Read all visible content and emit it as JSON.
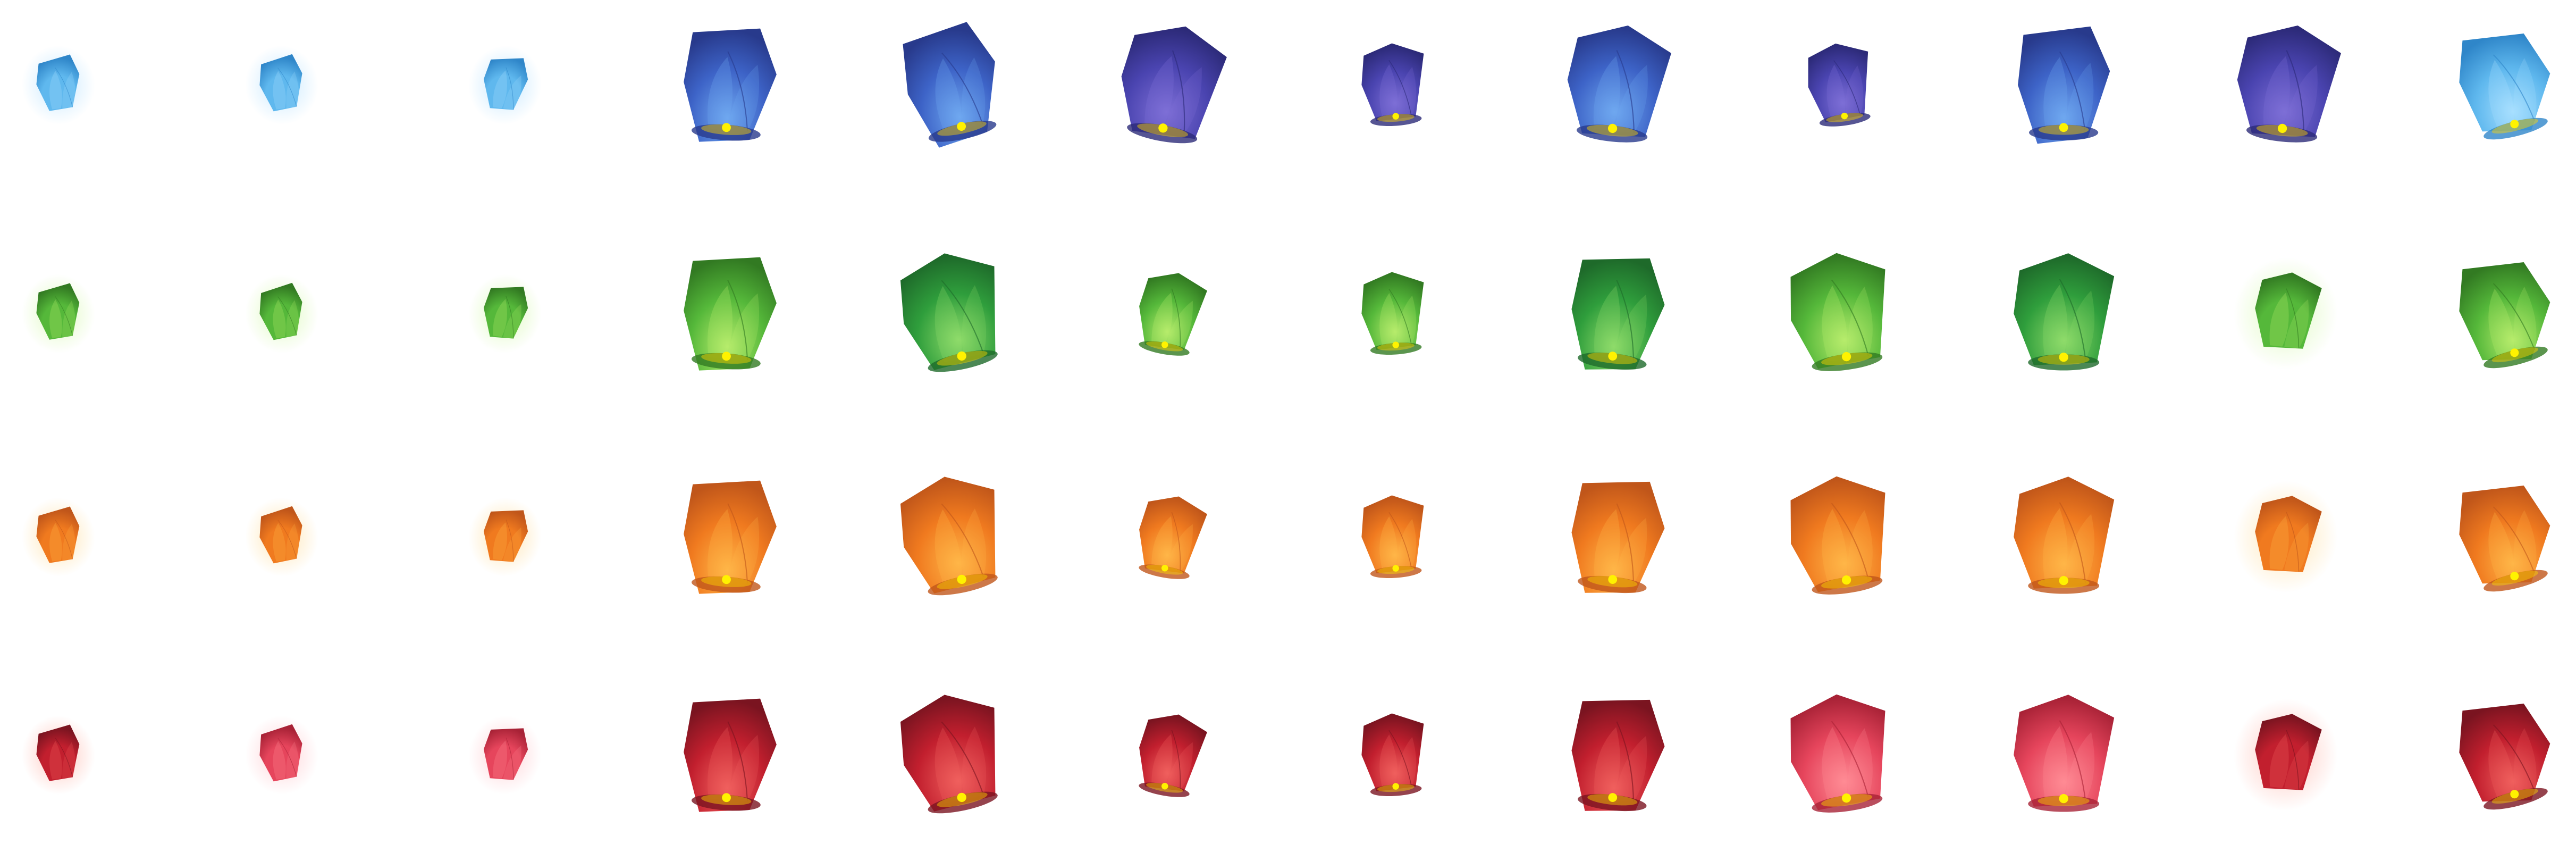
{
  "palette": {
    "blue": {
      "base": "#3d63c7",
      "light": "#6fa8f0",
      "dark": "#283a8c",
      "glow": "#8ec9ff"
    },
    "indigo": {
      "base": "#4a44b0",
      "light": "#7e6fd6",
      "dark": "#2c2a78",
      "glow": "#9a8cff"
    },
    "sky": {
      "base": "#5fb8ee",
      "light": "#a8e0ff",
      "dark": "#2f86c9",
      "glow": "#9fd8ff"
    },
    "green": {
      "base": "#2f9e3c",
      "light": "#8fdc6a",
      "dark": "#1e6a2a",
      "glow": "#b8f08a"
    },
    "lime": {
      "base": "#55b83a",
      "light": "#b7ec6c",
      "dark": "#327a22",
      "glow": "#c6f58f"
    },
    "orange": {
      "base": "#f07a1f",
      "light": "#ffb648",
      "dark": "#c0561a",
      "glow": "#ffd27a"
    },
    "red": {
      "base": "#c21f2e",
      "light": "#f0605e",
      "dark": "#7a1420",
      "glow": "#ff9a8a"
    },
    "pink": {
      "base": "#e6455c",
      "light": "#ff8b95",
      "dark": "#a82236",
      "glow": "#ffb1b8"
    },
    "flame": "#fff200",
    "flame_halo": "#ffd400"
  },
  "rows": [
    {
      "name": "blue",
      "lanterns": [
        {
          "color": "sky",
          "lit": false,
          "shape": "small"
        },
        {
          "color": "sky",
          "lit": false,
          "shape": "small"
        },
        {
          "color": "sky",
          "lit": false,
          "shape": "small"
        },
        {
          "color": "blue",
          "lit": true,
          "shape": "tall"
        },
        {
          "color": "blue",
          "lit": true,
          "shape": "tall"
        },
        {
          "color": "indigo",
          "lit": true,
          "shape": "wide"
        },
        {
          "color": "indigo",
          "lit": true,
          "shape": "compact"
        },
        {
          "color": "blue",
          "lit": true,
          "shape": "wide"
        },
        {
          "color": "indigo",
          "lit": true,
          "shape": "compact"
        },
        {
          "color": "blue",
          "lit": true,
          "shape": "tall"
        },
        {
          "color": "indigo",
          "lit": true,
          "shape": "wide"
        },
        {
          "color": "sky",
          "lit": true,
          "shape": "tilted"
        }
      ]
    },
    {
      "name": "green",
      "lanterns": [
        {
          "color": "lime",
          "lit": false,
          "shape": "small"
        },
        {
          "color": "lime",
          "lit": false,
          "shape": "small"
        },
        {
          "color": "lime",
          "lit": false,
          "shape": "small"
        },
        {
          "color": "lime",
          "lit": true,
          "shape": "tall"
        },
        {
          "color": "green",
          "lit": true,
          "shape": "wide"
        },
        {
          "color": "lime",
          "lit": true,
          "shape": "compact"
        },
        {
          "color": "lime",
          "lit": true,
          "shape": "compact"
        },
        {
          "color": "green",
          "lit": true,
          "shape": "tall"
        },
        {
          "color": "lime",
          "lit": true,
          "shape": "wide"
        },
        {
          "color": "green",
          "lit": true,
          "shape": "wide"
        },
        {
          "color": "lime",
          "lit": false,
          "shape": "compact"
        },
        {
          "color": "lime",
          "lit": true,
          "shape": "tilted"
        }
      ]
    },
    {
      "name": "orange",
      "lanterns": [
        {
          "color": "orange",
          "lit": false,
          "shape": "small"
        },
        {
          "color": "orange",
          "lit": false,
          "shape": "small"
        },
        {
          "color": "orange",
          "lit": false,
          "shape": "small"
        },
        {
          "color": "orange",
          "lit": true,
          "shape": "tall"
        },
        {
          "color": "orange",
          "lit": true,
          "shape": "wide"
        },
        {
          "color": "orange",
          "lit": true,
          "shape": "compact"
        },
        {
          "color": "orange",
          "lit": true,
          "shape": "compact"
        },
        {
          "color": "orange",
          "lit": true,
          "shape": "tall"
        },
        {
          "color": "orange",
          "lit": true,
          "shape": "wide"
        },
        {
          "color": "orange",
          "lit": true,
          "shape": "wide"
        },
        {
          "color": "orange",
          "lit": false,
          "shape": "compact"
        },
        {
          "color": "orange",
          "lit": true,
          "shape": "tilted"
        }
      ]
    },
    {
      "name": "red",
      "lanterns": [
        {
          "color": "red",
          "lit": false,
          "shape": "small"
        },
        {
          "color": "pink",
          "lit": false,
          "shape": "small"
        },
        {
          "color": "pink",
          "lit": false,
          "shape": "small"
        },
        {
          "color": "red",
          "lit": true,
          "shape": "tall"
        },
        {
          "color": "red",
          "lit": true,
          "shape": "wide"
        },
        {
          "color": "red",
          "lit": true,
          "shape": "compact"
        },
        {
          "color": "red",
          "lit": true,
          "shape": "compact"
        },
        {
          "color": "red",
          "lit": true,
          "shape": "tall"
        },
        {
          "color": "pink",
          "lit": true,
          "shape": "wide"
        },
        {
          "color": "pink",
          "lit": true,
          "shape": "wide"
        },
        {
          "color": "red",
          "lit": false,
          "shape": "compact"
        },
        {
          "color": "red",
          "lit": true,
          "shape": "tilted"
        }
      ]
    }
  ]
}
